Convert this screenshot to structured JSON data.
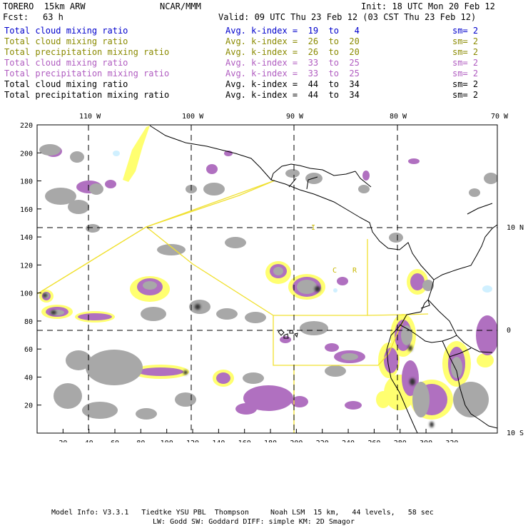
{
  "header": {
    "model": "TORERO  15km ARW",
    "center": "NCAR/MMM",
    "init": "Init: 18 UTC Mon 20 Feb 12",
    "fcst_label": "Fcst:",
    "fcst_value": "63 h",
    "valid": "Valid: 09 UTC Thu 23 Feb 12 (03 CST Thu 23 Feb 12)"
  },
  "legend": [
    {
      "field": "Total cloud mixing ratio",
      "kindex": "Avg. k-index =  19  to   4",
      "sm": "sm= 2",
      "color": "#0000cc"
    },
    {
      "field": "Total cloud mixing ratio",
      "kindex": "Avg. k-index =  26  to  20",
      "sm": "sm= 2",
      "color": "#8a8a00"
    },
    {
      "field": "Total precipitation mixing ratio",
      "kindex": "Avg. k-index =  26  to  20",
      "sm": "sm= 2",
      "color": "#8a8a00"
    },
    {
      "field": "Total cloud mixing ratio",
      "kindex": "Avg. k-index =  33  to  25",
      "sm": "sm= 2",
      "color": "#b05cc0"
    },
    {
      "field": "Total precipitation mixing ratio",
      "kindex": "Avg. k-index =  33  to  25",
      "sm": "sm= 2",
      "color": "#b05cc0"
    },
    {
      "field": "Total cloud mixing ratio",
      "kindex": "Avg. k-index =  44  to  34",
      "sm": "sm= 2",
      "color": "#000000"
    },
    {
      "field": "Total precipitation mixing ratio",
      "kindex": "Avg. k-index =  44  to  34",
      "sm": "sm= 2",
      "color": "#000000"
    }
  ],
  "map": {
    "lon_labels": [
      "110 W",
      "100 W",
      "90 W",
      "80 W",
      "70 W"
    ],
    "lat_labels": [
      "10 N",
      "0",
      "10 S"
    ],
    "y_ticks": [
      "220",
      "200",
      "180",
      "160",
      "140",
      "120",
      "100",
      "80",
      "60",
      "40",
      "20"
    ],
    "x_ticks": [
      "20",
      "40",
      "60",
      "80",
      "100",
      "120",
      "140",
      "160",
      "180",
      "200",
      "220",
      "240",
      "260",
      "280",
      "300",
      "320"
    ],
    "region_labels": [
      "I",
      "C",
      "R"
    ],
    "colors": {
      "cloud_gray": "#a8a8a8",
      "dark_core": "#303030",
      "purple": "#b070c0",
      "yellow": "#ffff70",
      "yellow_line": "#f0e030",
      "cyan": "#d0f0ff"
    }
  },
  "footer": {
    "line1": "Model Info: V3.3.1   Tiedtke YSU PBL  Thompson     Noah LSM  15 km,   44 levels,   58 sec",
    "line2": "LW: Godd SW: Goddard DIFF: simple KM: 2D Smagor"
  }
}
